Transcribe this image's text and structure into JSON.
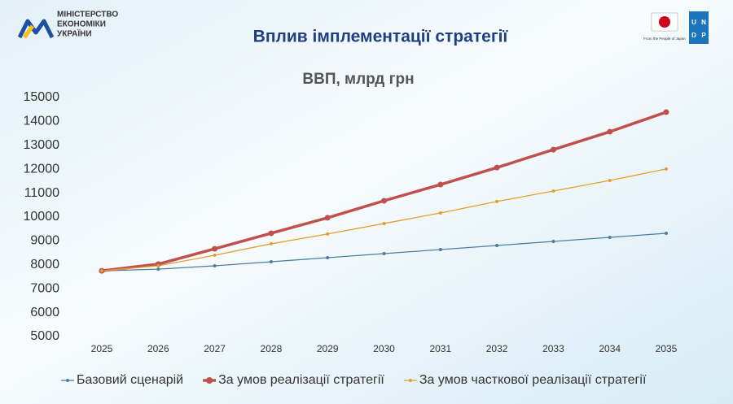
{
  "header": {
    "ministry": [
      "МІНІСТЕРСТВО",
      "ЕКОНОМІКИ",
      "УКРАЇНИ"
    ],
    "title": "Вплив імплементації стратегії",
    "japan_caption": "From the People of Japan",
    "undp": [
      "U",
      "N",
      "D",
      "P"
    ]
  },
  "chart_data": {
    "type": "line",
    "title": "ВВП, млрд грн",
    "categories": [
      "2025",
      "2026",
      "2027",
      "2028",
      "2029",
      "2030",
      "2031",
      "2032",
      "2033",
      "2034",
      "2035"
    ],
    "series": [
      {
        "name": "Базовий сценарій",
        "color": "#4a7fa0",
        "values": [
          7750,
          7820,
          7960,
          8130,
          8300,
          8470,
          8640,
          8810,
          8980,
          9150,
          9320
        ]
      },
      {
        "name": "За умов реалізації стратегії",
        "color": "#c0504d",
        "values": [
          7750,
          8030,
          8670,
          9320,
          9970,
          10680,
          11360,
          12070,
          12820,
          13570,
          14390
        ]
      },
      {
        "name": "За умов часткової реалізації стратегії",
        "color": "#e0a030",
        "values": [
          7750,
          7960,
          8400,
          8880,
          9290,
          9730,
          10170,
          10650,
          11090,
          11530,
          12010
        ]
      }
    ],
    "ylim": [
      5000,
      15000
    ],
    "yticks": [
      5000,
      6000,
      7000,
      8000,
      9000,
      10000,
      11000,
      12000,
      13000,
      14000,
      15000
    ],
    "grid": false,
    "legend": "bottom"
  }
}
